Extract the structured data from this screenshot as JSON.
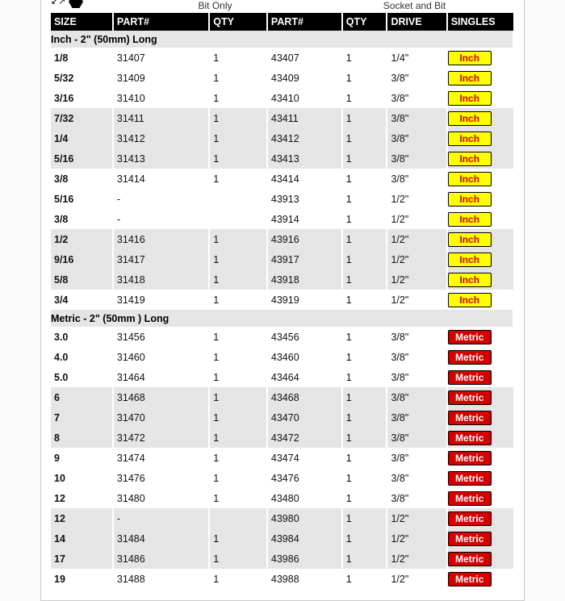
{
  "header": {
    "bit_only_label": "Bit Only",
    "socket_bit_label": "Socket and Bit"
  },
  "columns": {
    "size": "SIZE",
    "part1": "PART#",
    "qty1": "QTY",
    "part2": "PART#",
    "qty2": "QTY",
    "drive": "DRIVE",
    "singles": "SINGLES"
  },
  "sections": [
    {
      "title": "Inch - 2\" (50mm) Long",
      "tag": {
        "text": "Inch",
        "class": "inch"
      },
      "stripe_pattern": [
        "A",
        "A",
        "A",
        "B",
        "B",
        "B",
        "A",
        "A",
        "A",
        "B",
        "B",
        "B",
        "A"
      ],
      "rows": [
        {
          "size": "1/8",
          "p1": "31407",
          "q1": "1",
          "p2": "43407",
          "q2": "1",
          "drive": "1/4\""
        },
        {
          "size": "5/32",
          "p1": "31409",
          "q1": "1",
          "p2": "43409",
          "q2": "1",
          "drive": "3/8\""
        },
        {
          "size": "3/16",
          "p1": "31410",
          "q1": "1",
          "p2": "43410",
          "q2": "1",
          "drive": "3/8\""
        },
        {
          "size": "7/32",
          "p1": "31411",
          "q1": "1",
          "p2": "43411",
          "q2": "1",
          "drive": "3/8\""
        },
        {
          "size": "1/4",
          "p1": "31412",
          "q1": "1",
          "p2": "43412",
          "q2": "1",
          "drive": "3/8\""
        },
        {
          "size": "5/16",
          "p1": "31413",
          "q1": "1",
          "p2": "43413",
          "q2": "1",
          "drive": "3/8\""
        },
        {
          "size": "3/8",
          "p1": "31414",
          "q1": "1",
          "p2": "43414",
          "q2": "1",
          "drive": "3/8\""
        },
        {
          "size": "5/16",
          "p1": "-",
          "q1": "",
          "p2": "43913",
          "q2": "1",
          "drive": "1/2\""
        },
        {
          "size": "3/8",
          "p1": "-",
          "q1": "",
          "p2": "43914",
          "q2": "1",
          "drive": "1/2\""
        },
        {
          "size": "1/2",
          "p1": "31416",
          "q1": "1",
          "p2": "43916",
          "q2": "1",
          "drive": "1/2\""
        },
        {
          "size": "9/16",
          "p1": "31417",
          "q1": "1",
          "p2": "43917",
          "q2": "1",
          "drive": "1/2\""
        },
        {
          "size": "5/8",
          "p1": "31418",
          "q1": "1",
          "p2": "43918",
          "q2": "1",
          "drive": "1/2\""
        },
        {
          "size": "3/4",
          "p1": "31419",
          "q1": "1",
          "p2": "43919",
          "q2": "1",
          "drive": "1/2\""
        }
      ]
    },
    {
      "title": "Metric - 2\" (50mm ) Long",
      "tag": {
        "text": "Metric",
        "class": "metric"
      },
      "stripe_pattern": [
        "A",
        "A",
        "A",
        "B",
        "B",
        "B",
        "A",
        "A",
        "A",
        "B",
        "B",
        "B",
        "A"
      ],
      "rows": [
        {
          "size": "3.0",
          "p1": "31456",
          "q1": "1",
          "p2": "43456",
          "q2": "1",
          "drive": "3/8\""
        },
        {
          "size": "4.0",
          "p1": "31460",
          "q1": "1",
          "p2": "43460",
          "q2": "1",
          "drive": "3/8\""
        },
        {
          "size": "5.0",
          "p1": "31464",
          "q1": "1",
          "p2": "43464",
          "q2": "1",
          "drive": "3/8\""
        },
        {
          "size": "6",
          "p1": "31468",
          "q1": "1",
          "p2": "43468",
          "q2": "1",
          "drive": "3/8\""
        },
        {
          "size": "7",
          "p1": "31470",
          "q1": "1",
          "p2": "43470",
          "q2": "1",
          "drive": "3/8\""
        },
        {
          "size": "8",
          "p1": "31472",
          "q1": "1",
          "p2": "43472",
          "q2": "1",
          "drive": "3/8\""
        },
        {
          "size": "9",
          "p1": "31474",
          "q1": "1",
          "p2": "43474",
          "q2": "1",
          "drive": "3/8\""
        },
        {
          "size": "10",
          "p1": "31476",
          "q1": "1",
          "p2": "43476",
          "q2": "1",
          "drive": "3/8\""
        },
        {
          "size": "12",
          "p1": "31480",
          "q1": "1",
          "p2": "43480",
          "q2": "1",
          "drive": "3/8\""
        },
        {
          "size": "12",
          "p1": "-",
          "q1": "",
          "p2": "43980",
          "q2": "1",
          "drive": "1/2\""
        },
        {
          "size": "14",
          "p1": "31484",
          "q1": "1",
          "p2": "43984",
          "q2": "1",
          "drive": "1/2\""
        },
        {
          "size": "17",
          "p1": "31486",
          "q1": "1",
          "p2": "43986",
          "q2": "1",
          "drive": "1/2\""
        },
        {
          "size": "19",
          "p1": "31488",
          "q1": "1",
          "p2": "43988",
          "q2": "1",
          "drive": "1/2\""
        }
      ]
    }
  ]
}
